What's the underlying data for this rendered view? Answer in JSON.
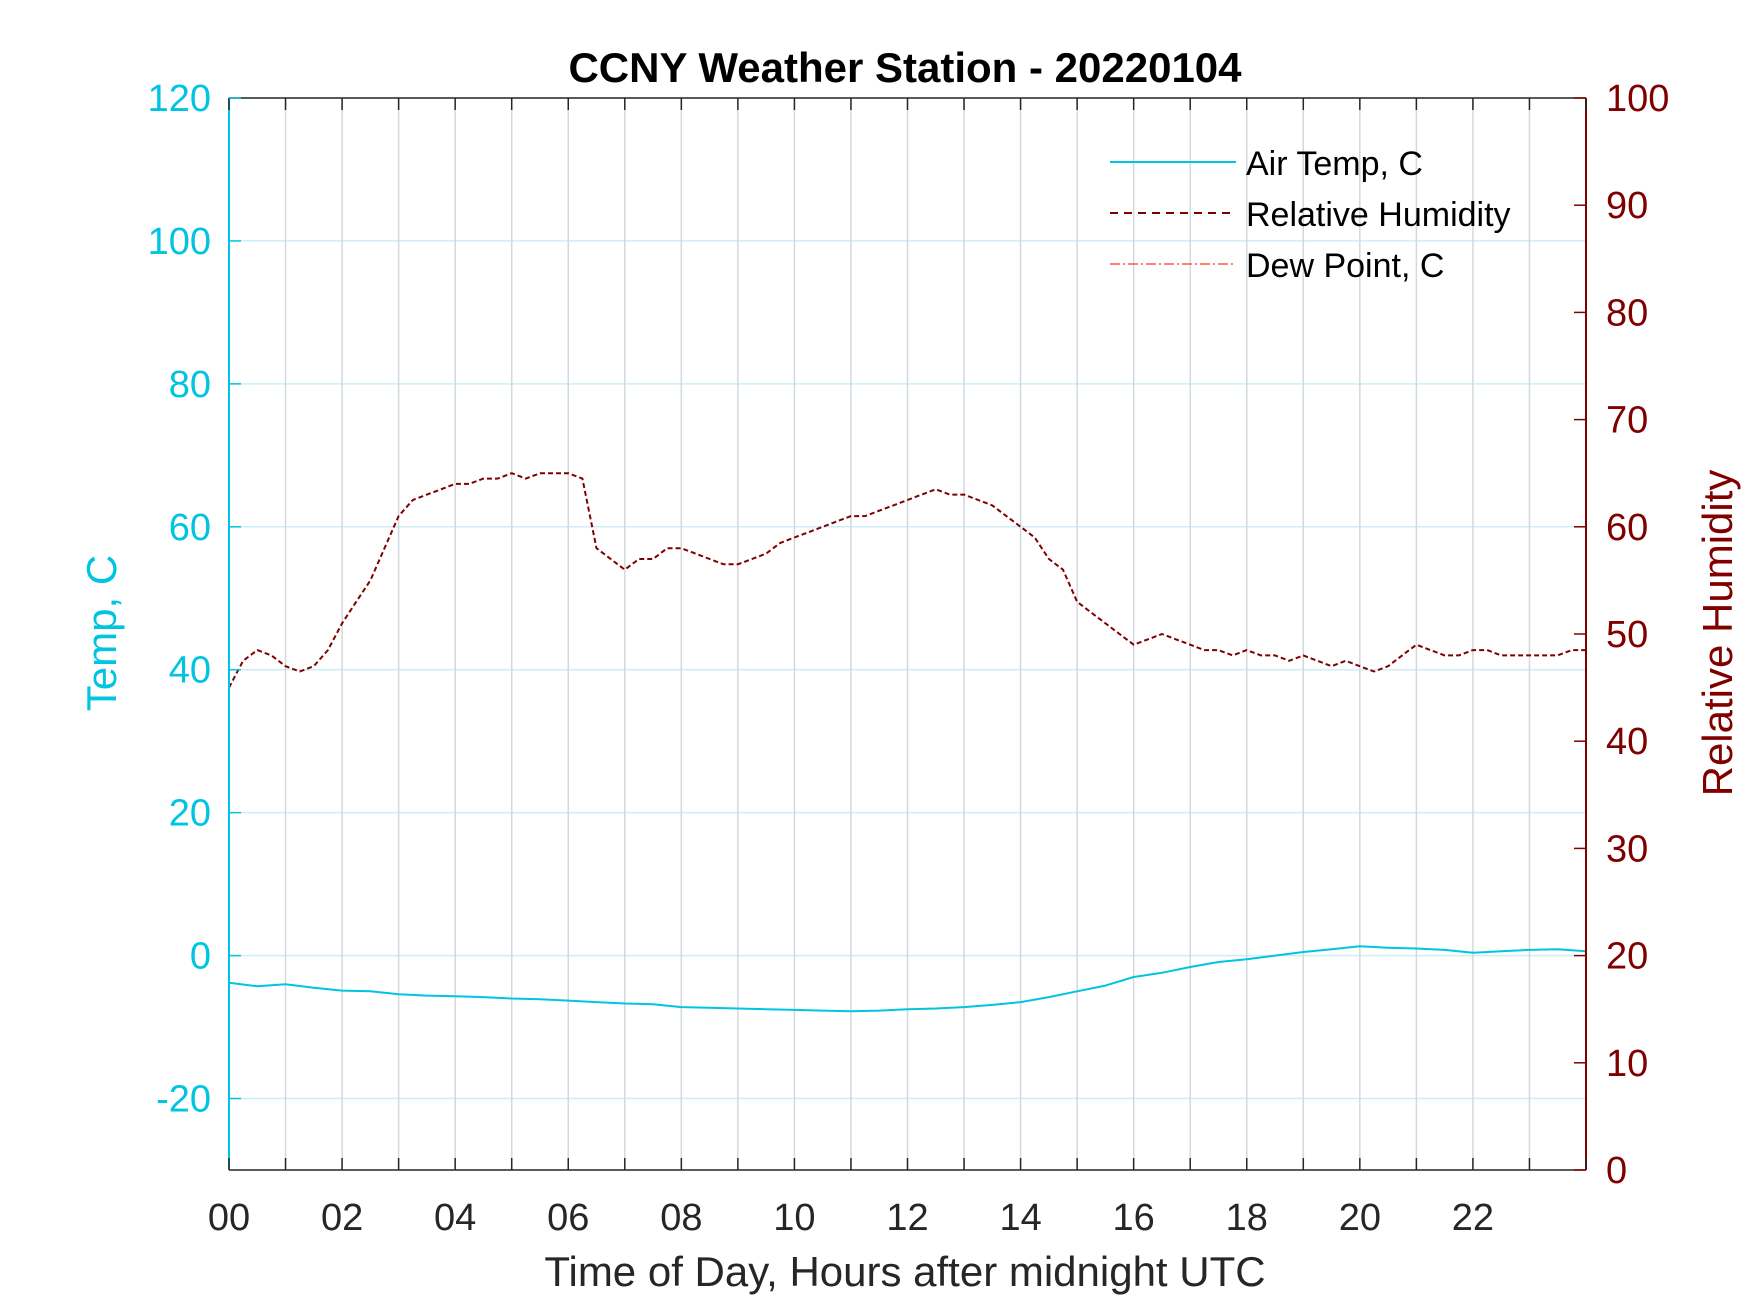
{
  "chart_data": {
    "type": "line",
    "title": "CCNY Weather Station - 20220104",
    "xlabel": "Time of Day, Hours after midnight UTC",
    "ylabel_left": "Temp, C",
    "ylabel_right": "Relative Humidity",
    "xlim": [
      0,
      24
    ],
    "ylim_left": [
      -30,
      120
    ],
    "ylim_right": [
      0,
      100
    ],
    "x_ticks": [
      0,
      2,
      4,
      6,
      8,
      10,
      12,
      14,
      16,
      18,
      20,
      22
    ],
    "x_tick_labels": [
      "00",
      "02",
      "04",
      "06",
      "08",
      "10",
      "12",
      "14",
      "16",
      "18",
      "20",
      "22"
    ],
    "y_left_ticks": [
      -20,
      0,
      20,
      40,
      60,
      80,
      100,
      120
    ],
    "y_left_tick_labels": [
      "-20",
      "0",
      "20",
      "40",
      "60",
      "80",
      "100",
      "120"
    ],
    "y_right_ticks": [
      0,
      10,
      20,
      30,
      40,
      50,
      60,
      70,
      80,
      90,
      100
    ],
    "y_right_tick_labels": [
      "0",
      "10",
      "20",
      "30",
      "40",
      "50",
      "60",
      "70",
      "80",
      "90",
      "100"
    ],
    "grid": true,
    "legend_position": "top-right",
    "colors": {
      "temp": "#00c4e0",
      "rh": "#800000",
      "dew": "#ff5a40",
      "grid_v": "#d3d8df",
      "grid_h": "#cdeef7",
      "axis": "#262626"
    },
    "series": [
      {
        "name": "Air Temp, C",
        "axis": "left",
        "style": "solid",
        "x": [
          0,
          0.5,
          1,
          1.5,
          2,
          2.5,
          3,
          3.5,
          4,
          4.5,
          5,
          5.5,
          6,
          6.5,
          7,
          7.5,
          8,
          8.5,
          9,
          9.5,
          10,
          10.5,
          11,
          11.5,
          12,
          12.5,
          13,
          13.5,
          14,
          14.5,
          15,
          15.5,
          16,
          16.5,
          17,
          17.5,
          18,
          18.5,
          19,
          19.5,
          20,
          20.5,
          21,
          21.5,
          22,
          22.5,
          23,
          23.5,
          24
        ],
        "values": [
          -3.8,
          -4.3,
          -4.0,
          -4.5,
          -4.9,
          -5.0,
          -5.4,
          -5.6,
          -5.7,
          -5.8,
          -6.0,
          -6.1,
          -6.3,
          -6.5,
          -6.7,
          -6.8,
          -7.2,
          -7.3,
          -7.4,
          -7.5,
          -7.6,
          -7.7,
          -7.8,
          -7.7,
          -7.5,
          -7.4,
          -7.2,
          -6.9,
          -6.5,
          -5.8,
          -5.0,
          -4.2,
          -3.0,
          -2.4,
          -1.6,
          -0.9,
          -0.5,
          0.0,
          0.5,
          0.9,
          1.3,
          1.1,
          1.0,
          0.8,
          0.4,
          0.6,
          0.8,
          0.9,
          0.6
        ]
      },
      {
        "name": "Relative Humidity",
        "axis": "right",
        "style": "dashed",
        "x": [
          0,
          0.25,
          0.5,
          0.75,
          1,
          1.25,
          1.5,
          1.75,
          2,
          2.25,
          2.5,
          2.75,
          3,
          3.25,
          3.5,
          3.75,
          4,
          4.25,
          4.5,
          4.75,
          5,
          5.25,
          5.5,
          5.75,
          6,
          6.25,
          6.5,
          6.75,
          7,
          7.25,
          7.5,
          7.75,
          8,
          8.25,
          8.5,
          8.75,
          9,
          9.25,
          9.5,
          9.75,
          10,
          10.25,
          10.5,
          10.75,
          11,
          11.25,
          11.5,
          11.75,
          12,
          12.25,
          12.5,
          12.75,
          13,
          13.25,
          13.5,
          13.75,
          14,
          14.25,
          14.5,
          14.75,
          15,
          15.25,
          15.5,
          15.75,
          16,
          16.25,
          16.5,
          16.75,
          17,
          17.25,
          17.5,
          17.75,
          18,
          18.25,
          18.5,
          18.75,
          19,
          19.25,
          19.5,
          19.75,
          20,
          20.25,
          20.5,
          20.75,
          21,
          21.25,
          21.5,
          21.75,
          22,
          22.25,
          22.5,
          22.75,
          23,
          23.25,
          23.5,
          23.75,
          24
        ],
        "values": [
          45,
          47.5,
          48.5,
          48,
          47,
          46.5,
          47,
          48.5,
          51,
          53,
          55,
          58,
          61,
          62.5,
          63,
          63.5,
          64,
          64,
          64.5,
          64.5,
          65,
          64.5,
          65,
          65,
          65,
          64.5,
          58,
          57,
          56,
          57,
          57,
          58,
          58,
          57.5,
          57,
          56.5,
          56.5,
          57,
          57.5,
          58.5,
          59,
          59.5,
          60,
          60.5,
          61,
          61,
          61.5,
          62,
          62.5,
          63,
          63.5,
          63,
          63,
          62.5,
          62,
          61,
          60,
          59,
          57,
          56,
          53,
          52,
          51,
          50,
          49,
          49.5,
          50,
          49.5,
          49,
          48.5,
          48.5,
          48,
          48.5,
          48,
          48,
          47.5,
          48,
          47.5,
          47,
          47.5,
          47,
          46.5,
          47,
          48,
          49,
          48.5,
          48,
          48,
          48.5,
          48.5,
          48,
          48,
          48,
          48,
          48,
          48.5,
          48.5
        ]
      },
      {
        "name": "Dew Point, C",
        "axis": "left",
        "style": "dashdot",
        "x": [],
        "values": []
      }
    ]
  }
}
